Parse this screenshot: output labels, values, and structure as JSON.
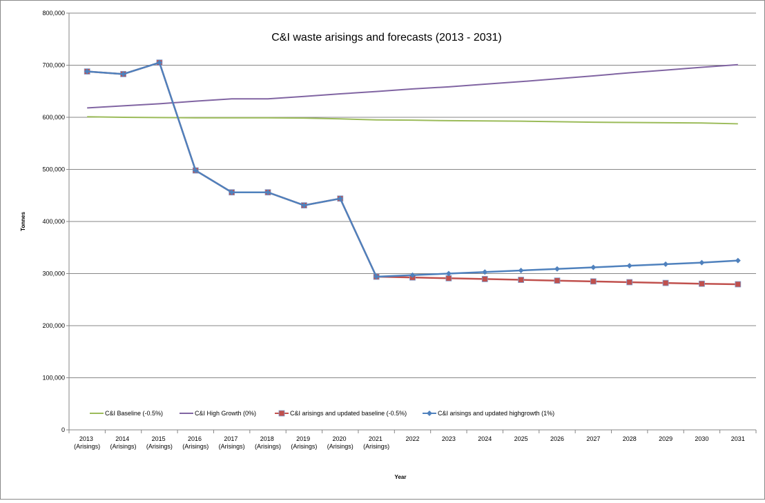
{
  "chart_data": {
    "type": "line",
    "title": "C&I waste arisings and forecasts (2013 - 2031)",
    "x_label": "Year",
    "y_label": "Tonnes",
    "categories": [
      "2013 (Arisings)",
      "2014 (Arisings)",
      "2015 (Arisings)",
      "2016 (Arisings)",
      "2017 (Arisings)",
      "2018 (Arisings)",
      "2019 (Arisings)",
      "2020 (Arisings)",
      "2021 (Arisings)",
      "2022",
      "2023",
      "2024",
      "2025",
      "2026",
      "2027",
      "2028",
      "2029",
      "2030",
      "2031"
    ],
    "series": [
      {
        "name": "C&I Baseline (-0.5%)",
        "color": "#9bbb59",
        "marker": "none",
        "values": [
          601000,
          600000,
          599500,
          599000,
          599000,
          599000,
          598500,
          597000,
          595000,
          594500,
          593500,
          593000,
          592500,
          591500,
          590500,
          590000,
          589500,
          589000,
          587500
        ]
      },
      {
        "name": "C&I High Growth (0%)",
        "color": "#8064a2",
        "marker": "none",
        "values": [
          618000,
          622000,
          626000,
          631000,
          635500,
          635500,
          640000,
          645000,
          649500,
          654500,
          658500,
          663500,
          668500,
          674000,
          679500,
          685500,
          690500,
          696000,
          701000
        ]
      },
      {
        "name": "C&I arisings and updated baseline (-0.5%)",
        "color": "#c0504d",
        "marker": "square",
        "values": [
          688000,
          683000,
          705000,
          498000,
          456000,
          456000,
          431000,
          444000,
          294000,
          292500,
          291000,
          289500,
          288000,
          286500,
          285000,
          283500,
          282000,
          280500,
          279500
        ]
      },
      {
        "name": "C&I arisings and updated highgrowth (1%)",
        "color": "#4f81bd",
        "marker": "diamond",
        "values": [
          688000,
          683000,
          705000,
          498000,
          456000,
          456000,
          431000,
          444000,
          294000,
          297000,
          300000,
          303000,
          306000,
          309000,
          312000,
          315000,
          318000,
          321000,
          325000
        ]
      }
    ],
    "ylim": [
      0,
      800000
    ],
    "yticks": [
      0,
      {
        "value": 100000,
        "label": "100,000"
      },
      {
        "value": 200000,
        "label": "200,000"
      },
      {
        "value": 300000,
        "label": "300,000"
      },
      {
        "value": 400000,
        "label": "400,000"
      },
      {
        "value": 500000,
        "label": "500,000"
      },
      {
        "value": 600000,
        "label": "600,000"
      },
      {
        "value": 700000,
        "label": "700,000"
      },
      {
        "value": 800000,
        "label": "800,000"
      }
    ],
    "grid": true,
    "legend": "bottom"
  }
}
